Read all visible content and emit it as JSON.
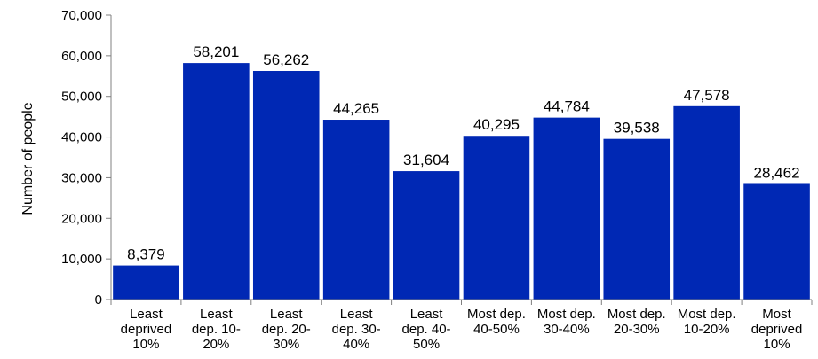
{
  "chart_data": {
    "type": "bar",
    "ylabel": "Number of people",
    "xlabel": "",
    "ylim": [
      0,
      70000
    ],
    "yticks": [
      "0",
      "10,000",
      "20,000",
      "30,000",
      "40,000",
      "50,000",
      "60,000",
      "70,000"
    ],
    "ytick_values": [
      0,
      10000,
      20000,
      30000,
      40000,
      50000,
      60000,
      70000
    ],
    "grid": false,
    "bar_color": "#0028b4",
    "categories": [
      "Least deprived 10%",
      "Least dep. 10-20%",
      "Least dep. 20-30%",
      "Least dep. 30-40%",
      "Least dep. 40-50%",
      "Most dep. 40-50%",
      "Most dep. 30-40%",
      "Most dep. 20-30%",
      "Most dep. 10-20%",
      "Most deprived 10%"
    ],
    "category_lines": [
      [
        "Least",
        "deprived",
        "10%"
      ],
      [
        "Least",
        "dep. 10-",
        "20%"
      ],
      [
        "Least",
        "dep. 20-",
        "30%"
      ],
      [
        "Least",
        "dep. 30-",
        "40%"
      ],
      [
        "Least",
        "dep. 40-",
        "50%"
      ],
      [
        "Most dep.",
        "40-50%"
      ],
      [
        "Most dep.",
        "30-40%"
      ],
      [
        "Most dep.",
        "20-30%"
      ],
      [
        "Most dep.",
        "10-20%"
      ],
      [
        "Most",
        "deprived",
        "10%"
      ]
    ],
    "values": [
      8379,
      58201,
      56262,
      44265,
      31604,
      40295,
      44784,
      39538,
      47578,
      28462
    ],
    "data_labels": [
      "8,379",
      "58,201",
      "56,262",
      "44,265",
      "31,604",
      "40,295",
      "44,784",
      "39,538",
      "47,578",
      "28,462"
    ]
  }
}
